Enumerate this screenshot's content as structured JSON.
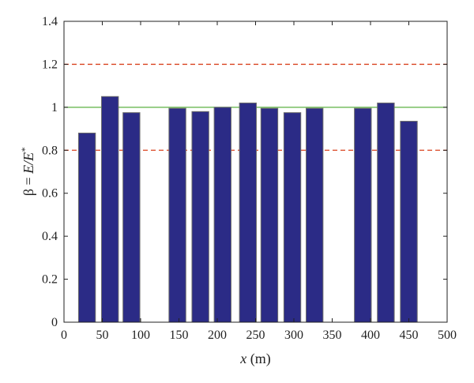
{
  "chart_data": {
    "type": "bar",
    "title": "",
    "xlabel": {
      "var": "x",
      "unit": " (m)"
    },
    "ylabel": {
      "prefix": "β = ",
      "expr": "E/E",
      "sup": "*"
    },
    "xlim": [
      0,
      500
    ],
    "ylim": [
      0,
      1.4
    ],
    "xticks": [
      0,
      50,
      100,
      150,
      200,
      250,
      300,
      350,
      400,
      450,
      500
    ],
    "yticks": [
      0,
      0.2,
      0.4,
      0.6,
      0.8,
      1,
      1.2,
      1.4
    ],
    "bar_width": 22,
    "bars": [
      {
        "x": 30,
        "value": 0.88
      },
      {
        "x": 60,
        "value": 1.05
      },
      {
        "x": 88,
        "value": 0.975
      },
      {
        "x": 148,
        "value": 0.995
      },
      {
        "x": 178,
        "value": 0.98
      },
      {
        "x": 207,
        "value": 1.0
      },
      {
        "x": 240,
        "value": 1.02
      },
      {
        "x": 268,
        "value": 0.995
      },
      {
        "x": 298,
        "value": 0.975
      },
      {
        "x": 327,
        "value": 0.995
      },
      {
        "x": 390,
        "value": 0.995
      },
      {
        "x": 420,
        "value": 1.02
      },
      {
        "x": 450,
        "value": 0.935
      }
    ],
    "reference_lines": [
      {
        "y": 1.2,
        "style": "dashed",
        "color": "#d9421f"
      },
      {
        "y": 1.0,
        "style": "solid",
        "color": "#5bb040"
      },
      {
        "y": 0.8,
        "style": "dashed",
        "color": "#d9421f"
      }
    ],
    "colors": {
      "bar_fill": "#2b2b86",
      "bar_edge": "#6b6b6b",
      "axis": "#222222"
    },
    "grid": false,
    "legend": "none"
  }
}
